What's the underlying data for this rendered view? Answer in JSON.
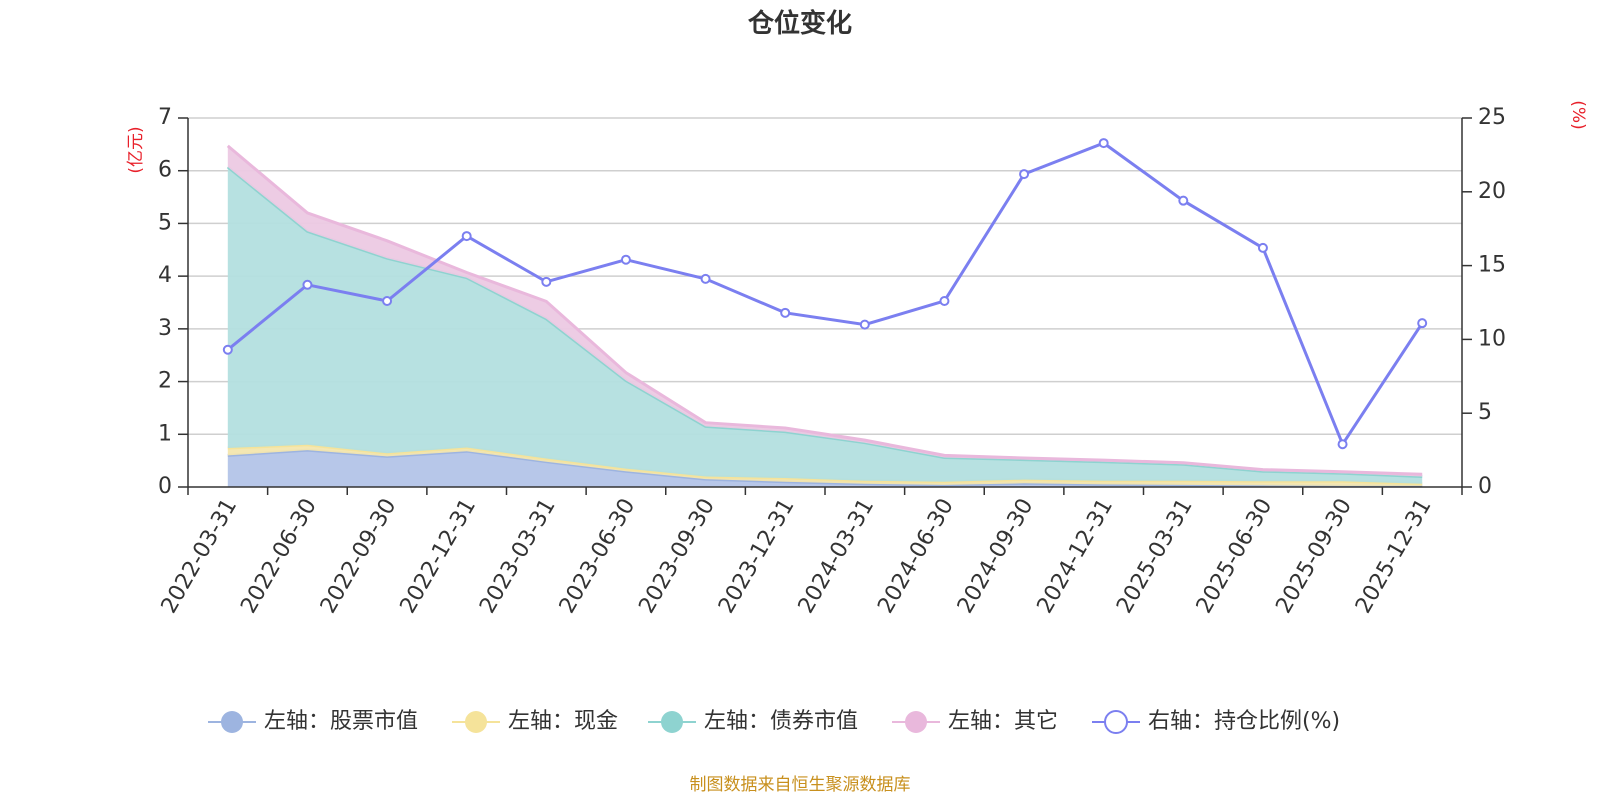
{
  "chart_data": {
    "type": "area",
    "title": "仓位变化",
    "left_axis_unit": "(亿元)",
    "right_axis_unit": "(%)",
    "categories": [
      "2022-03-31",
      "2022-06-30",
      "2022-09-30",
      "2022-12-31",
      "2023-03-31",
      "2023-06-30",
      "2023-09-30",
      "2023-12-31",
      "2024-03-31",
      "2024-06-30",
      "2024-09-30",
      "2024-12-31",
      "2025-03-31",
      "2025-06-30",
      "2025-09-30",
      "2025-12-31"
    ],
    "left_ylim": [
      0,
      7
    ],
    "left_yticks": [
      "0",
      "1",
      "2",
      "3",
      "4",
      "5",
      "6",
      "7"
    ],
    "right_ylim": [
      0,
      25
    ],
    "right_yticks": [
      "0",
      "5",
      "10",
      "15",
      "20",
      "25"
    ],
    "grid": true,
    "legend_position": "bottom",
    "stacked_series": [
      {
        "name": "左轴：股票市值",
        "color": "#9db4e0",
        "fill": "#b3c4e8",
        "values": [
          0.6,
          0.7,
          0.58,
          0.68,
          0.48,
          0.3,
          0.15,
          0.1,
          0.06,
          0.04,
          0.07,
          0.05,
          0.04,
          0.03,
          0.02,
          0.02
        ]
      },
      {
        "name": "左轴：现金",
        "color": "#f5e39a",
        "fill": "#f3e6ae",
        "values": [
          0.14,
          0.1,
          0.06,
          0.07,
          0.06,
          0.05,
          0.05,
          0.07,
          0.06,
          0.06,
          0.07,
          0.07,
          0.08,
          0.08,
          0.09,
          0.04
        ]
      },
      {
        "name": "左轴：债券市值",
        "color": "#8ed3d0",
        "fill": "#b3dfdf",
        "values": [
          5.33,
          4.05,
          3.7,
          3.22,
          2.65,
          1.67,
          0.95,
          0.88,
          0.72,
          0.46,
          0.38,
          0.36,
          0.31,
          0.19,
          0.15,
          0.14
        ]
      },
      {
        "name": "左轴：其它",
        "color": "#e9b8dc",
        "fill": "#ecc9e3",
        "values": [
          0.4,
          0.35,
          0.33,
          0.1,
          0.33,
          0.15,
          0.07,
          0.07,
          0.05,
          0.04,
          0.03,
          0.03,
          0.03,
          0.03,
          0.03,
          0.04
        ]
      }
    ],
    "line_series": {
      "name": "右轴：持仓比例(%)",
      "color": "#7b7ff0",
      "values": [
        9.3,
        13.7,
        12.6,
        17.0,
        13.9,
        15.4,
        14.1,
        11.8,
        11.0,
        12.6,
        21.2,
        23.3,
        19.4,
        16.2,
        2.9,
        11.1
      ]
    }
  },
  "footer": {
    "source": "制图数据来自恒生聚源数据库"
  }
}
